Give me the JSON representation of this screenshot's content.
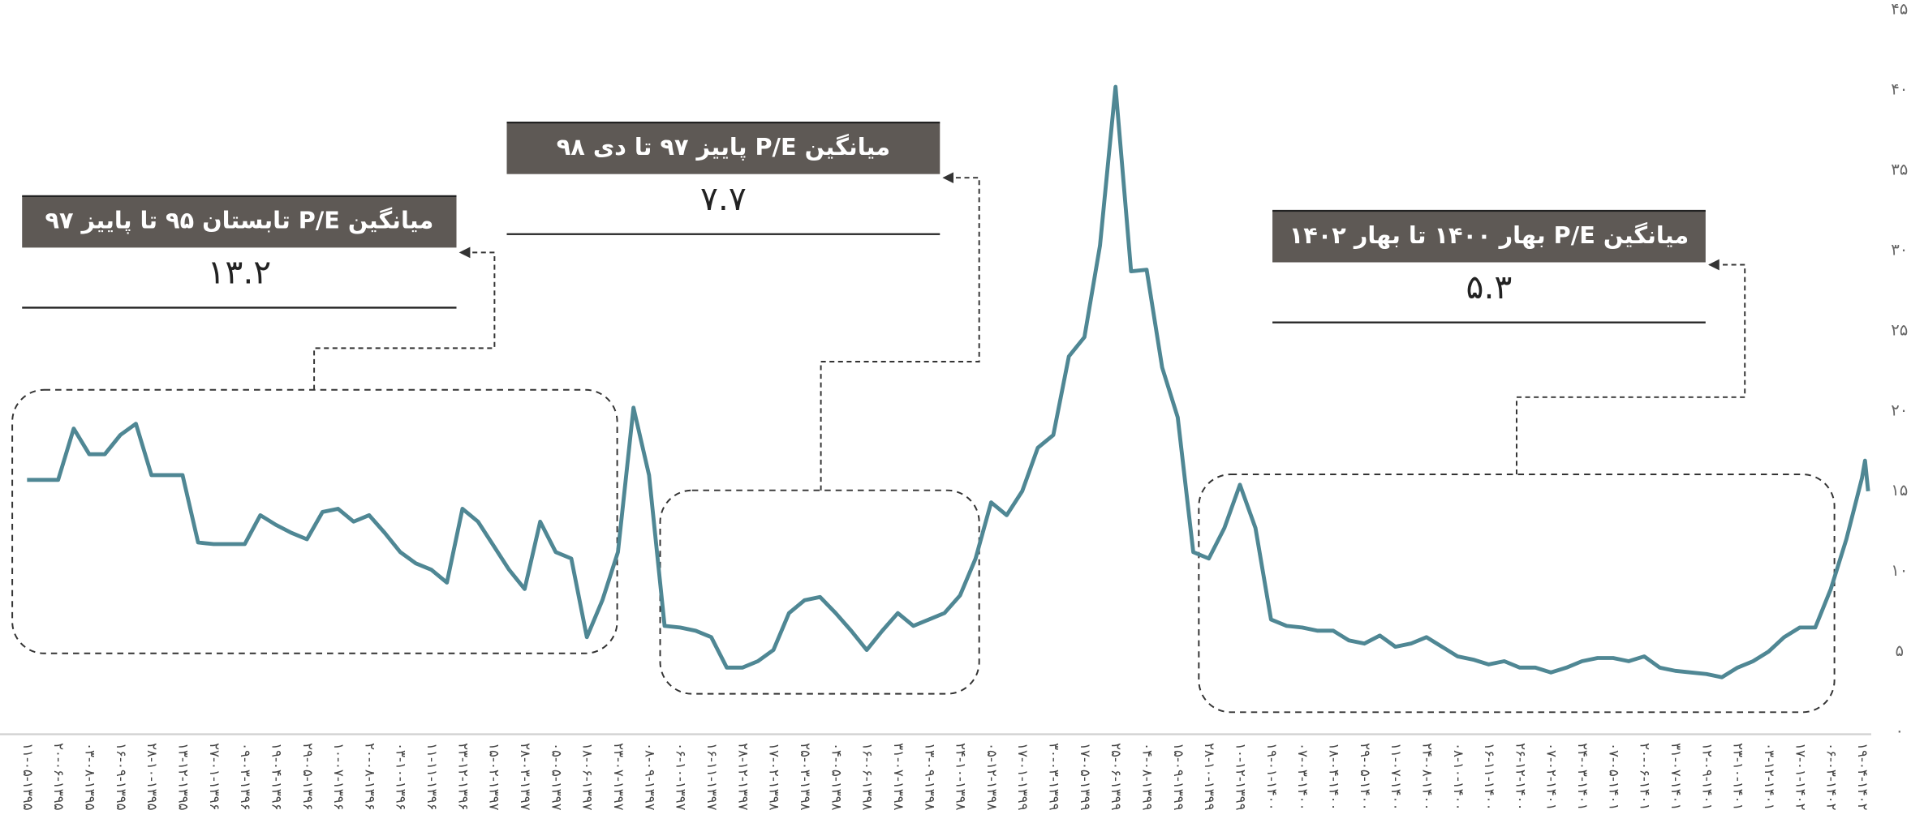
{
  "chart_data": {
    "type": "line",
    "series": [
      {
        "color": "#4f8794",
        "x": [
          0,
          0.5,
          1,
          1.5,
          2,
          2.5,
          3,
          3.5,
          4,
          4.5,
          5,
          5.5,
          6,
          6.5,
          7,
          7.5,
          8,
          8.5,
          9,
          9.5,
          10,
          10.5,
          11,
          11.5,
          12,
          12.5,
          13,
          13.5,
          14,
          14.5,
          15,
          15.5,
          16,
          16.5,
          17,
          17.5,
          18,
          18.5,
          19,
          19.5,
          20,
          20.5,
          21,
          21.5,
          22,
          22.5,
          23,
          23.5,
          24,
          24.5,
          25,
          25.5,
          26,
          26.5,
          27,
          27.5,
          28,
          28.5,
          29,
          29.5,
          30,
          30.5,
          31,
          31.5,
          32,
          32.5,
          33,
          33.5,
          34,
          34.5,
          35,
          35.5,
          36,
          36.5,
          37,
          37.5,
          38,
          38.5,
          39,
          39.5,
          40,
          40.5,
          41,
          41.5,
          42,
          42.5,
          43,
          43.5,
          44,
          44.5,
          45,
          45.5,
          46,
          46.5,
          47,
          47.5,
          48,
          48.5,
          49,
          49.5,
          50,
          50.5,
          51,
          51.5,
          52,
          52.5,
          53,
          53.5,
          54,
          54.5,
          55,
          55.5,
          56,
          56.5,
          57,
          57.5,
          58,
          58.5,
          59,
          59.1,
          59.2
        ],
        "values": [
          15.7,
          15.7,
          15.7,
          18.9,
          17.3,
          17.3,
          18.5,
          19.2,
          16.0,
          16.0,
          16.0,
          11.8,
          11.7,
          11.7,
          11.7,
          13.5,
          12.9,
          12.4,
          12.0,
          13.7,
          13.9,
          13.1,
          13.5,
          12.4,
          11.2,
          10.5,
          10.1,
          9.3,
          13.9,
          13.1,
          11.6,
          10.1,
          8.9,
          13.1,
          11.2,
          10.8,
          5.9,
          8.2,
          11.2,
          20.2,
          16.0,
          6.6,
          6.5,
          6.3,
          5.9,
          4.0,
          4.0,
          4.4,
          5.1,
          7.4,
          8.2,
          8.4,
          7.4,
          6.3,
          5.1,
          6.3,
          7.4,
          6.6,
          7.0,
          7.4,
          8.5,
          10.8,
          14.3,
          13.5,
          15.0,
          17.7,
          18.5,
          23.4,
          24.6,
          30.3,
          40.2,
          28.7,
          28.8,
          22.7,
          19.6,
          11.2,
          10.8,
          12.7,
          15.4,
          12.7,
          7.0,
          6.6,
          6.5,
          6.3,
          6.3,
          5.7,
          5.5,
          6.0,
          5.3,
          5.5,
          5.9,
          5.3,
          4.7,
          4.5,
          4.2,
          4.4,
          4.0,
          4.0,
          3.7,
          4.0,
          4.4,
          4.6,
          4.6,
          4.4,
          4.7,
          4.0,
          3.8,
          3.7,
          3.6,
          3.4,
          4.0,
          4.4,
          5.0,
          5.9,
          6.5,
          6.5,
          8.9,
          12.0,
          15.8,
          16.9,
          15.0
        ]
      }
    ],
    "xlim": [
      -0.87,
      59.3
    ],
    "xticks": [
      {
        "value": 0,
        "label": "۱۱-۰۵-۱۳۹۵"
      },
      {
        "value": 1,
        "label": "۲۰-۰۶-۱۳۹۵"
      },
      {
        "value": 2,
        "label": "۰۳-۰۸-۱۳۹۵"
      },
      {
        "value": 3,
        "label": "۱۶-۰۹-۱۳۹۵"
      },
      {
        "value": 4,
        "label": "۲۸-۱۰-۱۳۹۵"
      },
      {
        "value": 5,
        "label": "۱۳-۱۲-۱۳۹۵"
      },
      {
        "value": 6,
        "label": "۲۷-۰۱-۱۳۹۶"
      },
      {
        "value": 7,
        "label": "۰۹-۰۳-۱۳۹۶"
      },
      {
        "value": 8,
        "label": "۱۹-۰۴-۱۳۹۶"
      },
      {
        "value": 9,
        "label": "۲۹-۰۵-۱۳۹۶"
      },
      {
        "value": 10,
        "label": "۱۰-۰۷-۱۳۹۶"
      },
      {
        "value": 11,
        "label": "۲۰-۰۸-۱۳۹۶"
      },
      {
        "value": 12,
        "label": "۰۳-۱۰-۱۳۹۶"
      },
      {
        "value": 13,
        "label": "۱۱-۱۱-۱۳۹۶"
      },
      {
        "value": 14,
        "label": "۲۳-۱۲-۱۳۹۶"
      },
      {
        "value": 15,
        "label": "۱۵-۰۲-۱۳۹۷"
      },
      {
        "value": 16,
        "label": "۲۸-۰۳-۱۳۹۷"
      },
      {
        "value": 17,
        "label": "۰۵-۰۵-۱۳۹۷"
      },
      {
        "value": 18,
        "label": "۱۸-۰۶-۱۳۹۷"
      },
      {
        "value": 19,
        "label": "۲۳-۰۷-۱۳۹۷"
      },
      {
        "value": 20,
        "label": "۰۸-۰۹-۱۳۹۷"
      },
      {
        "value": 21,
        "label": "۰۶-۱۰-۱۳۹۷"
      },
      {
        "value": 22,
        "label": "۱۶-۱۱-۱۳۹۷"
      },
      {
        "value": 23,
        "label": "۲۸-۱۲-۱۳۹۷"
      },
      {
        "value": 24,
        "label": "۱۷-۰۲-۱۳۹۸"
      },
      {
        "value": 25,
        "label": "۲۵-۰۳-۱۳۹۸"
      },
      {
        "value": 26,
        "label": "۰۴-۰۵-۱۳۹۸"
      },
      {
        "value": 27,
        "label": "۱۶-۰۶-۱۳۹۸"
      },
      {
        "value": 28,
        "label": "۳۱-۰۷-۱۳۹۸"
      },
      {
        "value": 29,
        "label": "۱۳-۰۹-۱۳۹۸"
      },
      {
        "value": 30,
        "label": "۲۴-۱۰-۱۳۹۸"
      },
      {
        "value": 31,
        "label": "۰۵-۱۲-۱۳۹۸"
      },
      {
        "value": 32,
        "label": "۱۷-۰۱-۱۳۹۹"
      },
      {
        "value": 33,
        "label": "۳۰-۰۳-۱۳۹۹"
      },
      {
        "value": 34,
        "label": "۱۷-۰۵-۱۳۹۹"
      },
      {
        "value": 35,
        "label": "۲۵-۰۶-۱۳۹۹"
      },
      {
        "value": 36,
        "label": "۰۴-۰۸-۱۳۹۹"
      },
      {
        "value": 37,
        "label": "۱۵-۰۹-۱۳۹۹"
      },
      {
        "value": 38,
        "label": "۲۸-۱۰-۱۳۹۹"
      },
      {
        "value": 39,
        "label": "۱۰-۱۲-۱۳۹۹"
      },
      {
        "value": 40,
        "label": "۱۹-۰۱-۱۴۰۰"
      },
      {
        "value": 41,
        "label": "۰۷-۰۳-۱۴۰۰"
      },
      {
        "value": 42,
        "label": "۱۸-۰۴-۱۴۰۰"
      },
      {
        "value": 43,
        "label": "۲۹-۰۵-۱۴۰۰"
      },
      {
        "value": 44,
        "label": "۱۱-۰۷-۱۴۰۰"
      },
      {
        "value": 45,
        "label": "۲۴-۰۸-۱۴۰۰"
      },
      {
        "value": 46,
        "label": "۰۸-۱۰-۱۴۰۰"
      },
      {
        "value": 47,
        "label": "۱۶-۱۱-۱۴۰۰"
      },
      {
        "value": 48,
        "label": "۲۶-۱۲-۱۴۰۰"
      },
      {
        "value": 49,
        "label": "۰۷-۰۲-۱۴۰۱"
      },
      {
        "value": 50,
        "label": "۲۴-۰۳-۱۴۰۱"
      },
      {
        "value": 51,
        "label": "۰۷-۰۵-۱۴۰۱"
      },
      {
        "value": 52,
        "label": "۲۰-۰۶-۱۴۰۱"
      },
      {
        "value": 53,
        "label": "۳۱-۰۷-۱۴۰۱"
      },
      {
        "value": 54,
        "label": "۱۲-۰۹-۱۴۰۱"
      },
      {
        "value": 55,
        "label": "۲۳-۱۰-۱۴۰۱"
      },
      {
        "value": 56,
        "label": "۰۳-۱۲-۱۴۰۱"
      },
      {
        "value": 57,
        "label": "۱۷-۰۱-۱۴۰۲"
      },
      {
        "value": 58,
        "label": "۰۶-۰۳-۱۴۰۲"
      },
      {
        "value": 59,
        "label": "۱۹-۰۴-۱۴۰۲"
      }
    ],
    "ylim": [
      0,
      45
    ],
    "yticks": [
      {
        "value": 0,
        "label": "۰"
      },
      {
        "value": 5,
        "label": "۵"
      },
      {
        "value": 10,
        "label": "۱۰"
      },
      {
        "value": 15,
        "label": "۱۵"
      },
      {
        "value": 20,
        "label": "۲۰"
      },
      {
        "value": 25,
        "label": "۲۵"
      },
      {
        "value": 30,
        "label": "۳۰"
      },
      {
        "value": 35,
        "label": "۳۵"
      },
      {
        "value": 40,
        "label": "۴۰"
      },
      {
        "value": 45,
        "label": "۴۵"
      }
    ],
    "grid": false,
    "annotations": [
      {
        "title": "میانگین P/E تابستان ۹۵ تا پاییز ۹۷",
        "value": "۱۳.۲"
      },
      {
        "title": "میانگین P/E پاییز ۹۷ تا دی ۹۸",
        "value": "۷.۷"
      },
      {
        "title": "میانگین P/E بهار ۱۴۰۰ تا بهار ۱۴۰۲",
        "value": "۵.۳"
      }
    ]
  }
}
